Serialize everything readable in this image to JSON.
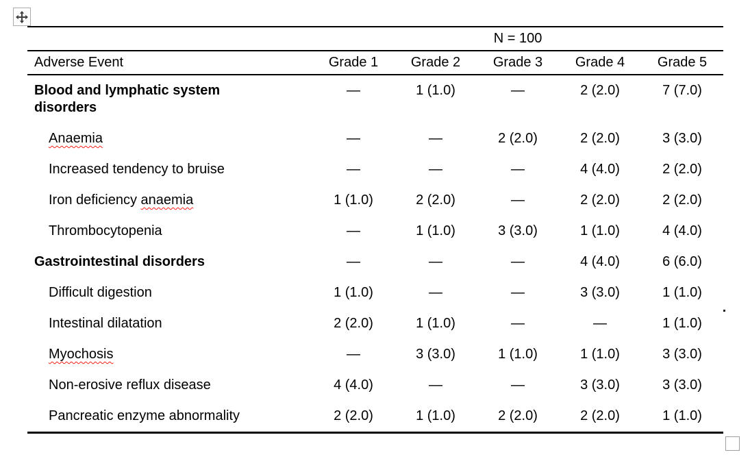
{
  "colors": {
    "background": "#ffffff",
    "text": "#000000",
    "table_border": "#000000",
    "spellcheck_squiggle": "#ff1d13",
    "handle_border": "#ababab",
    "handle_arrow": "#3f3f3f"
  },
  "icons": {
    "move_icon": "four-directional-move-arrows",
    "resize_icon": "empty-square-resize-box"
  },
  "table": {
    "n_header": "N = 100",
    "columns": [
      "Adverse Event",
      "Grade 1",
      "Grade 2",
      "Grade 3",
      "Grade 4",
      "Grade 5"
    ],
    "rows": [
      {
        "label": "Blood and lymphatic system disorders",
        "misspelled": "",
        "bold": true,
        "indent": false,
        "values": [
          "—",
          "1 (1.0)",
          "—",
          "2 (2.0)",
          "7 (7.0)"
        ]
      },
      {
        "label": "",
        "misspelled": "Anaemia",
        "bold": false,
        "indent": true,
        "values": [
          "—",
          "—",
          "2 (2.0)",
          "2 (2.0)",
          "3 (3.0)"
        ]
      },
      {
        "label": "Increased tendency to bruise",
        "misspelled": "",
        "bold": false,
        "indent": true,
        "values": [
          "—",
          "—",
          "—",
          "4 (4.0)",
          "2 (2.0)"
        ]
      },
      {
        "label": "Iron deficiency ",
        "misspelled": "anaemia",
        "bold": false,
        "indent": true,
        "values": [
          "1 (1.0)",
          "2 (2.0)",
          "—",
          "2 (2.0)",
          "2 (2.0)"
        ]
      },
      {
        "label": "Thrombocytopenia",
        "misspelled": "",
        "bold": false,
        "indent": true,
        "values": [
          "—",
          "1 (1.0)",
          "3 (3.0)",
          "1 (1.0)",
          "4 (4.0)"
        ]
      },
      {
        "label": "Gastrointestinal disorders",
        "misspelled": "",
        "bold": true,
        "indent": false,
        "values": [
          "—",
          "—",
          "—",
          "4 (4.0)",
          "6 (6.0)"
        ]
      },
      {
        "label": "Difficult digestion",
        "misspelled": "",
        "bold": false,
        "indent": true,
        "values": [
          "1 (1.0)",
          "—",
          "—",
          "3 (3.0)",
          "1 (1.0)"
        ]
      },
      {
        "label": "Intestinal dilatation",
        "misspelled": "",
        "bold": false,
        "indent": true,
        "values": [
          "2 (2.0)",
          "1 (1.0)",
          "—",
          "—",
          "1 (1.0)"
        ]
      },
      {
        "label": "",
        "misspelled": "Myochosis",
        "bold": false,
        "indent": true,
        "values": [
          "—",
          "3 (3.0)",
          "1 (1.0)",
          "1 (1.0)",
          "3 (3.0)"
        ]
      },
      {
        "label": "Non-erosive reflux disease",
        "misspelled": "",
        "bold": false,
        "indent": true,
        "values": [
          "4 (4.0)",
          "—",
          "—",
          "3 (3.0)",
          "3 (3.0)"
        ]
      },
      {
        "label": "Pancreatic enzyme abnormality",
        "misspelled": "",
        "bold": false,
        "indent": true,
        "values": [
          "2 (2.0)",
          "1 (1.0)",
          "2 (2.0)",
          "2 (2.0)",
          "1 (1.0)"
        ]
      }
    ]
  }
}
